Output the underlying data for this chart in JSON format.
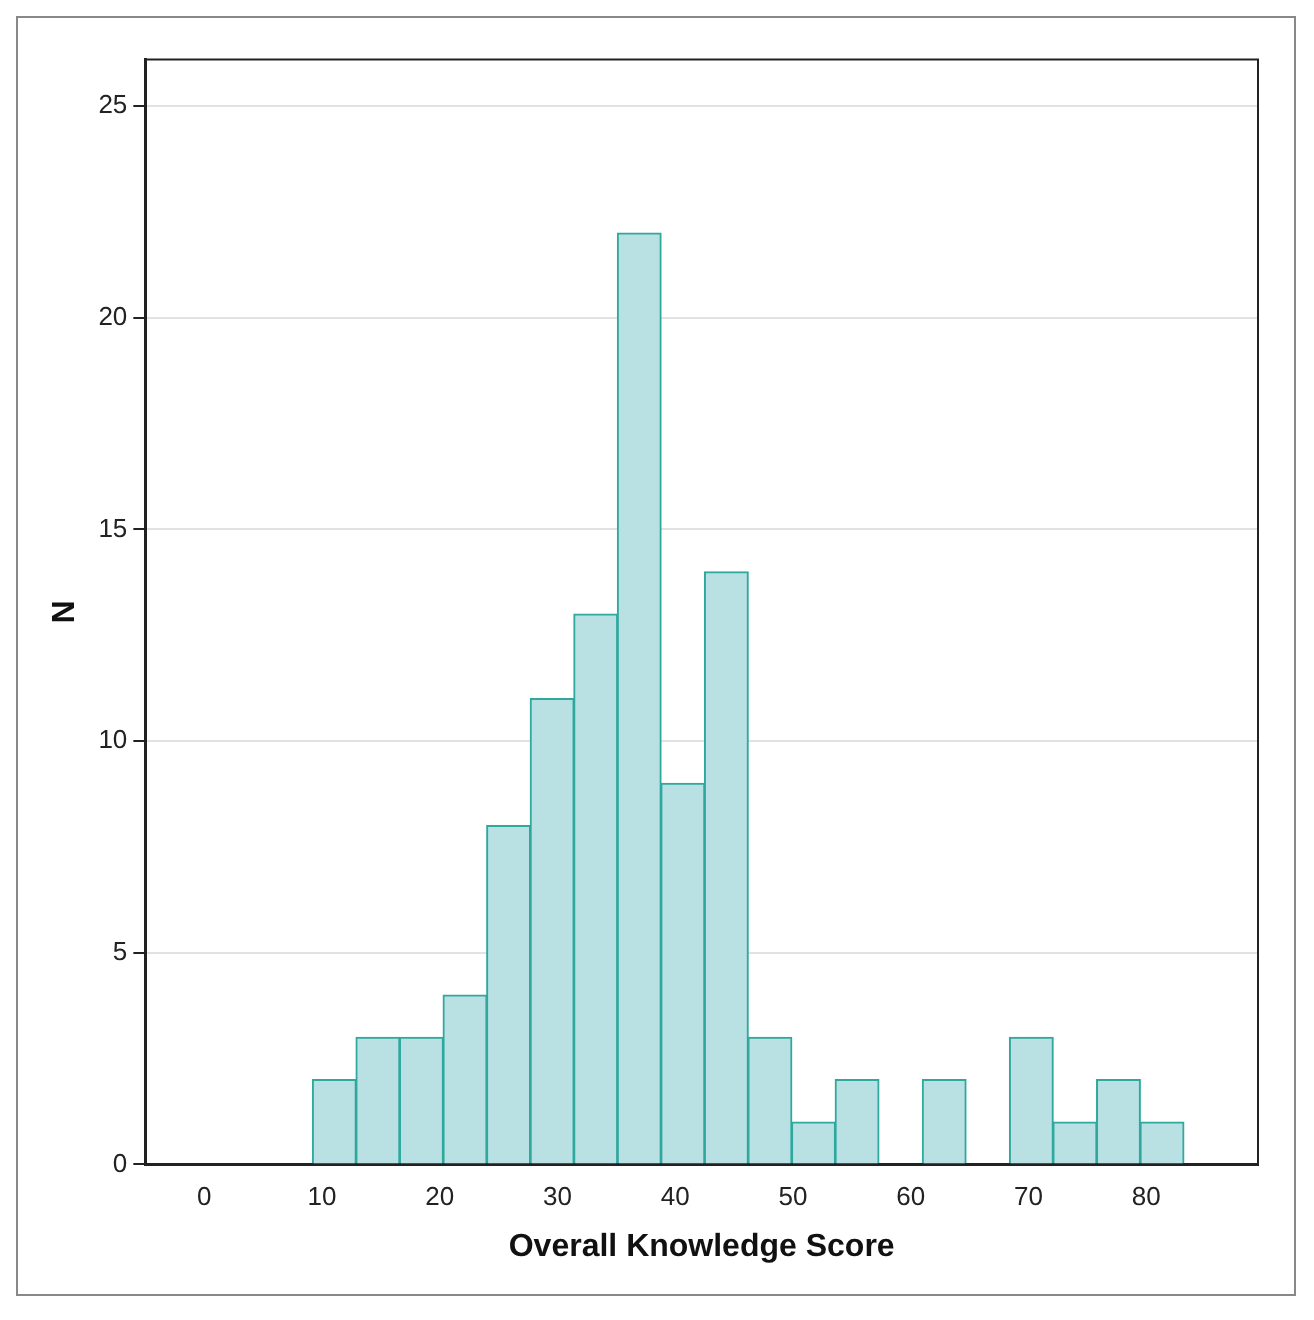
{
  "chart_data": {
    "type": "histogram",
    "xlabel": "Overall Knowledge Score",
    "ylabel": "N",
    "bins": [
      9.2,
      12.9,
      16.6,
      20.3,
      24.0,
      27.7,
      31.4,
      35.1,
      38.8,
      42.5,
      46.2,
      49.9,
      53.6,
      57.3,
      61.0,
      64.7,
      68.4,
      72.1,
      75.8,
      79.5,
      83.2
    ],
    "values": [
      2,
      3,
      3,
      4,
      8,
      11,
      13,
      22,
      9,
      14,
      3,
      1,
      2,
      0,
      2,
      0,
      3,
      1,
      2,
      1
    ],
    "color": "#b9e1e4",
    "xlim": [
      -5,
      89.5
    ],
    "xticks": [
      0,
      10,
      20,
      30,
      40,
      50,
      60,
      70,
      80
    ],
    "ylim": [
      0,
      26.1
    ],
    "yticks": [
      0,
      5,
      10,
      15,
      20,
      25
    ],
    "grid": "y",
    "legend": false
  }
}
